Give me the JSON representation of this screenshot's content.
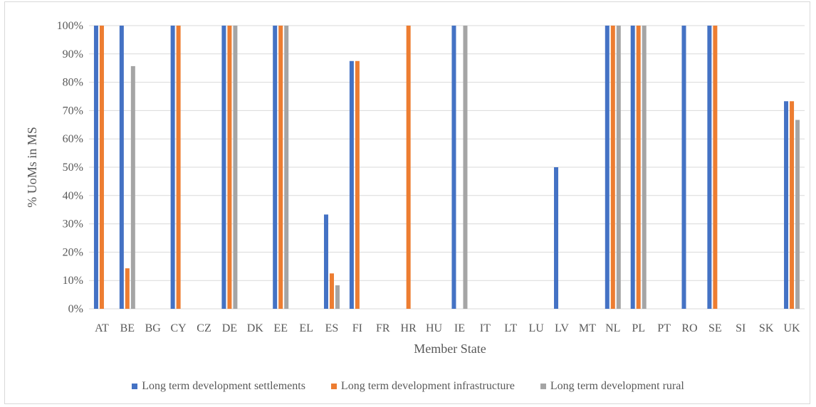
{
  "chart_data": {
    "type": "bar",
    "xlabel": "Member State",
    "ylabel": "% UoMs in MS",
    "ylim": [
      0,
      100
    ],
    "yticks": [
      0,
      10,
      20,
      30,
      40,
      50,
      60,
      70,
      80,
      90,
      100
    ],
    "ytick_labels": [
      "0%",
      "10%",
      "20%",
      "30%",
      "40%",
      "50%",
      "60%",
      "70%",
      "80%",
      "90%",
      "100%"
    ],
    "grid": "horizontal",
    "legend_position": "bottom",
    "categories": [
      "AT",
      "BE",
      "BG",
      "CY",
      "CZ",
      "DE",
      "DK",
      "EE",
      "EL",
      "ES",
      "FI",
      "FR",
      "HR",
      "HU",
      "IE",
      "IT",
      "LT",
      "LU",
      "LV",
      "MT",
      "NL",
      "PL",
      "PT",
      "RO",
      "SE",
      "SI",
      "SK",
      "UK"
    ],
    "series": [
      {
        "name": "Long term development settlements",
        "color": "#4472c4",
        "values": [
          100,
          100,
          0,
          100,
          0,
          100,
          0,
          100,
          0,
          33.3,
          87.5,
          0,
          0,
          0,
          100,
          0,
          0,
          0,
          50,
          0,
          100,
          100,
          0,
          100,
          100,
          0,
          0,
          73.3
        ]
      },
      {
        "name": "Long term development infrastructure",
        "color": "#ed7d31",
        "values": [
          100,
          14.3,
          0,
          100,
          0,
          100,
          0,
          100,
          0,
          12.5,
          87.5,
          0,
          100,
          0,
          0,
          0,
          0,
          0,
          0,
          0,
          100,
          100,
          0,
          0,
          100,
          0,
          0,
          73.3
        ]
      },
      {
        "name": "Long term development rural",
        "color": "#a5a5a5",
        "values": [
          0,
          85.7,
          0,
          0,
          0,
          100,
          0,
          100,
          0,
          8.3,
          0,
          0,
          0,
          0,
          100,
          0,
          0,
          0,
          0,
          0,
          100,
          100,
          0,
          0,
          0,
          0,
          0,
          66.7
        ]
      }
    ]
  }
}
